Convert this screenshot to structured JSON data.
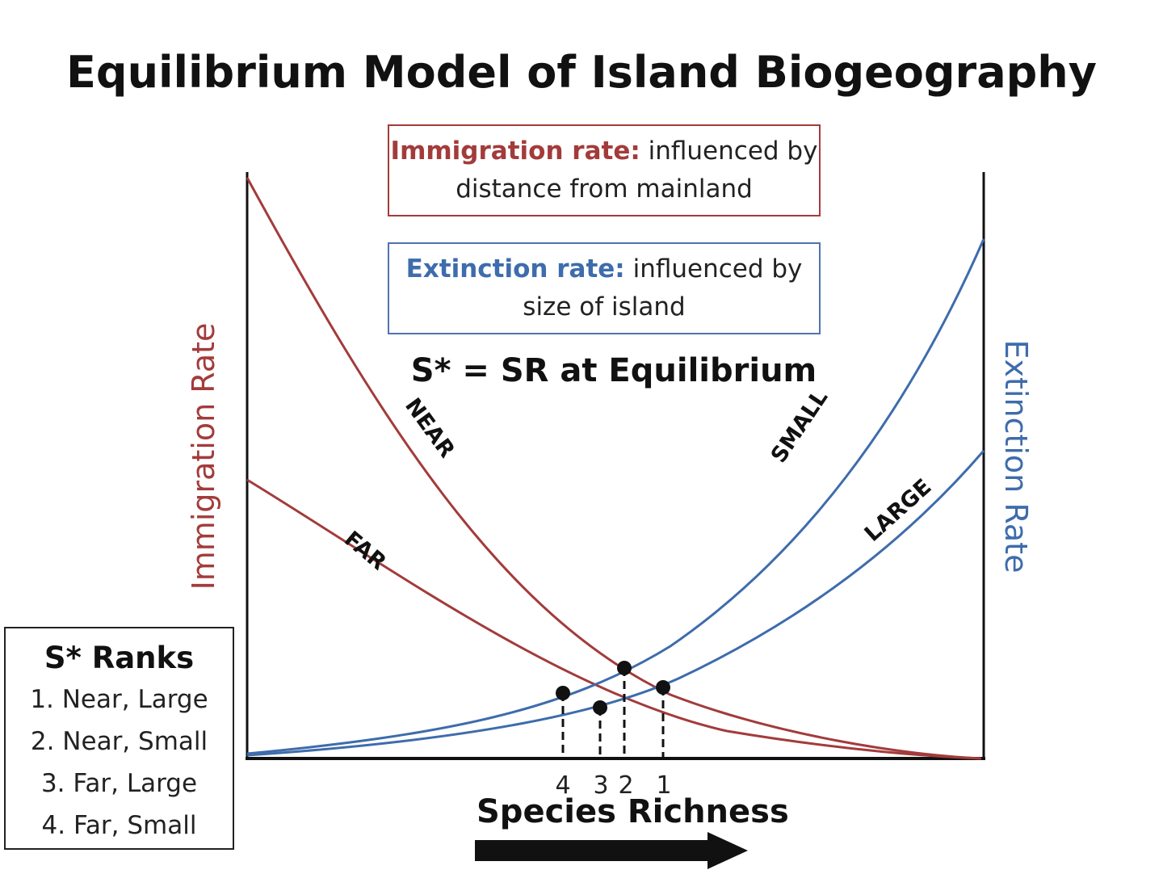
{
  "title": "Equilibrium Model of Island Biogeography",
  "immigration_box": {
    "key": "Immigration rate:",
    "text": "influenced by distance from mainland"
  },
  "extinction_box": {
    "key": "Extinction rate:",
    "text": "influenced by size of island"
  },
  "equilibrium_note": "S* = SR at Equilibrium",
  "left_axis_label": "Immigration Rate",
  "right_axis_label": "Extinction Rate",
  "x_axis_label": "Species Richness",
  "curve_labels": {
    "near": "NEAR",
    "far": "FAR",
    "small": "SMALL",
    "large": "LARGE"
  },
  "equilibrium_ticks": [
    "4",
    "3",
    "2",
    "1"
  ],
  "ranks": {
    "title": "S* Ranks",
    "items": [
      "1. Near, Large",
      "2. Near, Small",
      "3. Far, Large",
      "4. Far, Small"
    ]
  },
  "colors": {
    "immigration": "#a33b3b",
    "extinction": "#3e6cac",
    "axis": "#111111"
  }
}
